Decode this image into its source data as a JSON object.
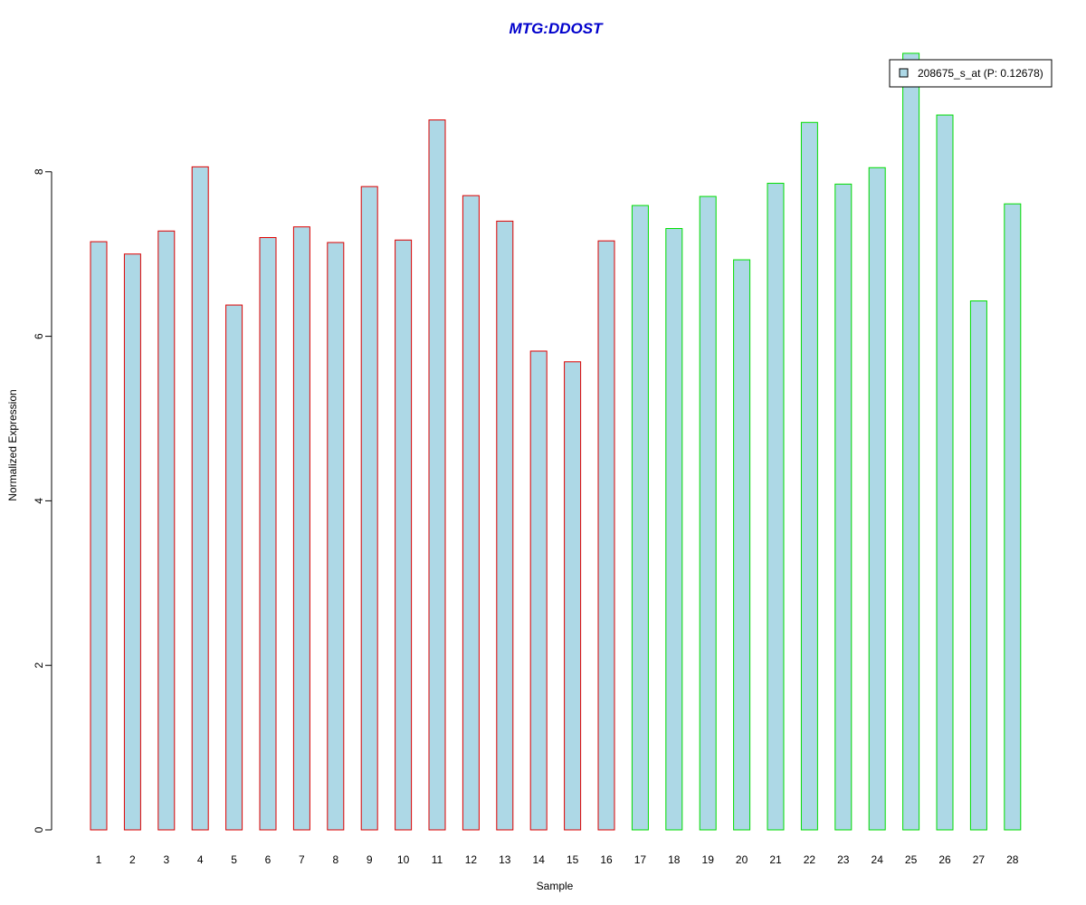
{
  "chart_data": {
    "type": "bar",
    "title": "MTG:DDOST",
    "xlabel": "Sample",
    "ylabel": "Normalized Expression",
    "ylim": [
      0,
      9.5
    ],
    "yticks": [
      "0",
      "2",
      "4",
      "6",
      "8"
    ],
    "categories": [
      "1",
      "2",
      "3",
      "4",
      "5",
      "6",
      "7",
      "8",
      "9",
      "10",
      "11",
      "12",
      "13",
      "14",
      "15",
      "16",
      "17",
      "18",
      "19",
      "20",
      "21",
      "22",
      "23",
      "24",
      "25",
      "26",
      "27",
      "28"
    ],
    "series": [
      {
        "name": "208675_s_at (P: 0.12678)",
        "values": [
          7.15,
          7.0,
          7.28,
          8.06,
          6.38,
          7.2,
          7.33,
          7.14,
          7.82,
          7.17,
          8.63,
          7.71,
          7.4,
          5.82,
          5.69,
          7.16,
          7.59,
          7.31,
          7.7,
          6.93,
          7.86,
          8.6,
          7.85,
          8.05,
          9.44,
          8.69,
          6.43,
          7.61
        ]
      }
    ],
    "groups": [
      {
        "range": [
          1,
          16
        ],
        "border_color": "#dd0000"
      },
      {
        "range": [
          17,
          28
        ],
        "border_color": "#00dd00"
      }
    ],
    "bar_fill": "#add8e6",
    "title_color": "#0000cc",
    "legend_position": "top-right",
    "grid": false
  }
}
